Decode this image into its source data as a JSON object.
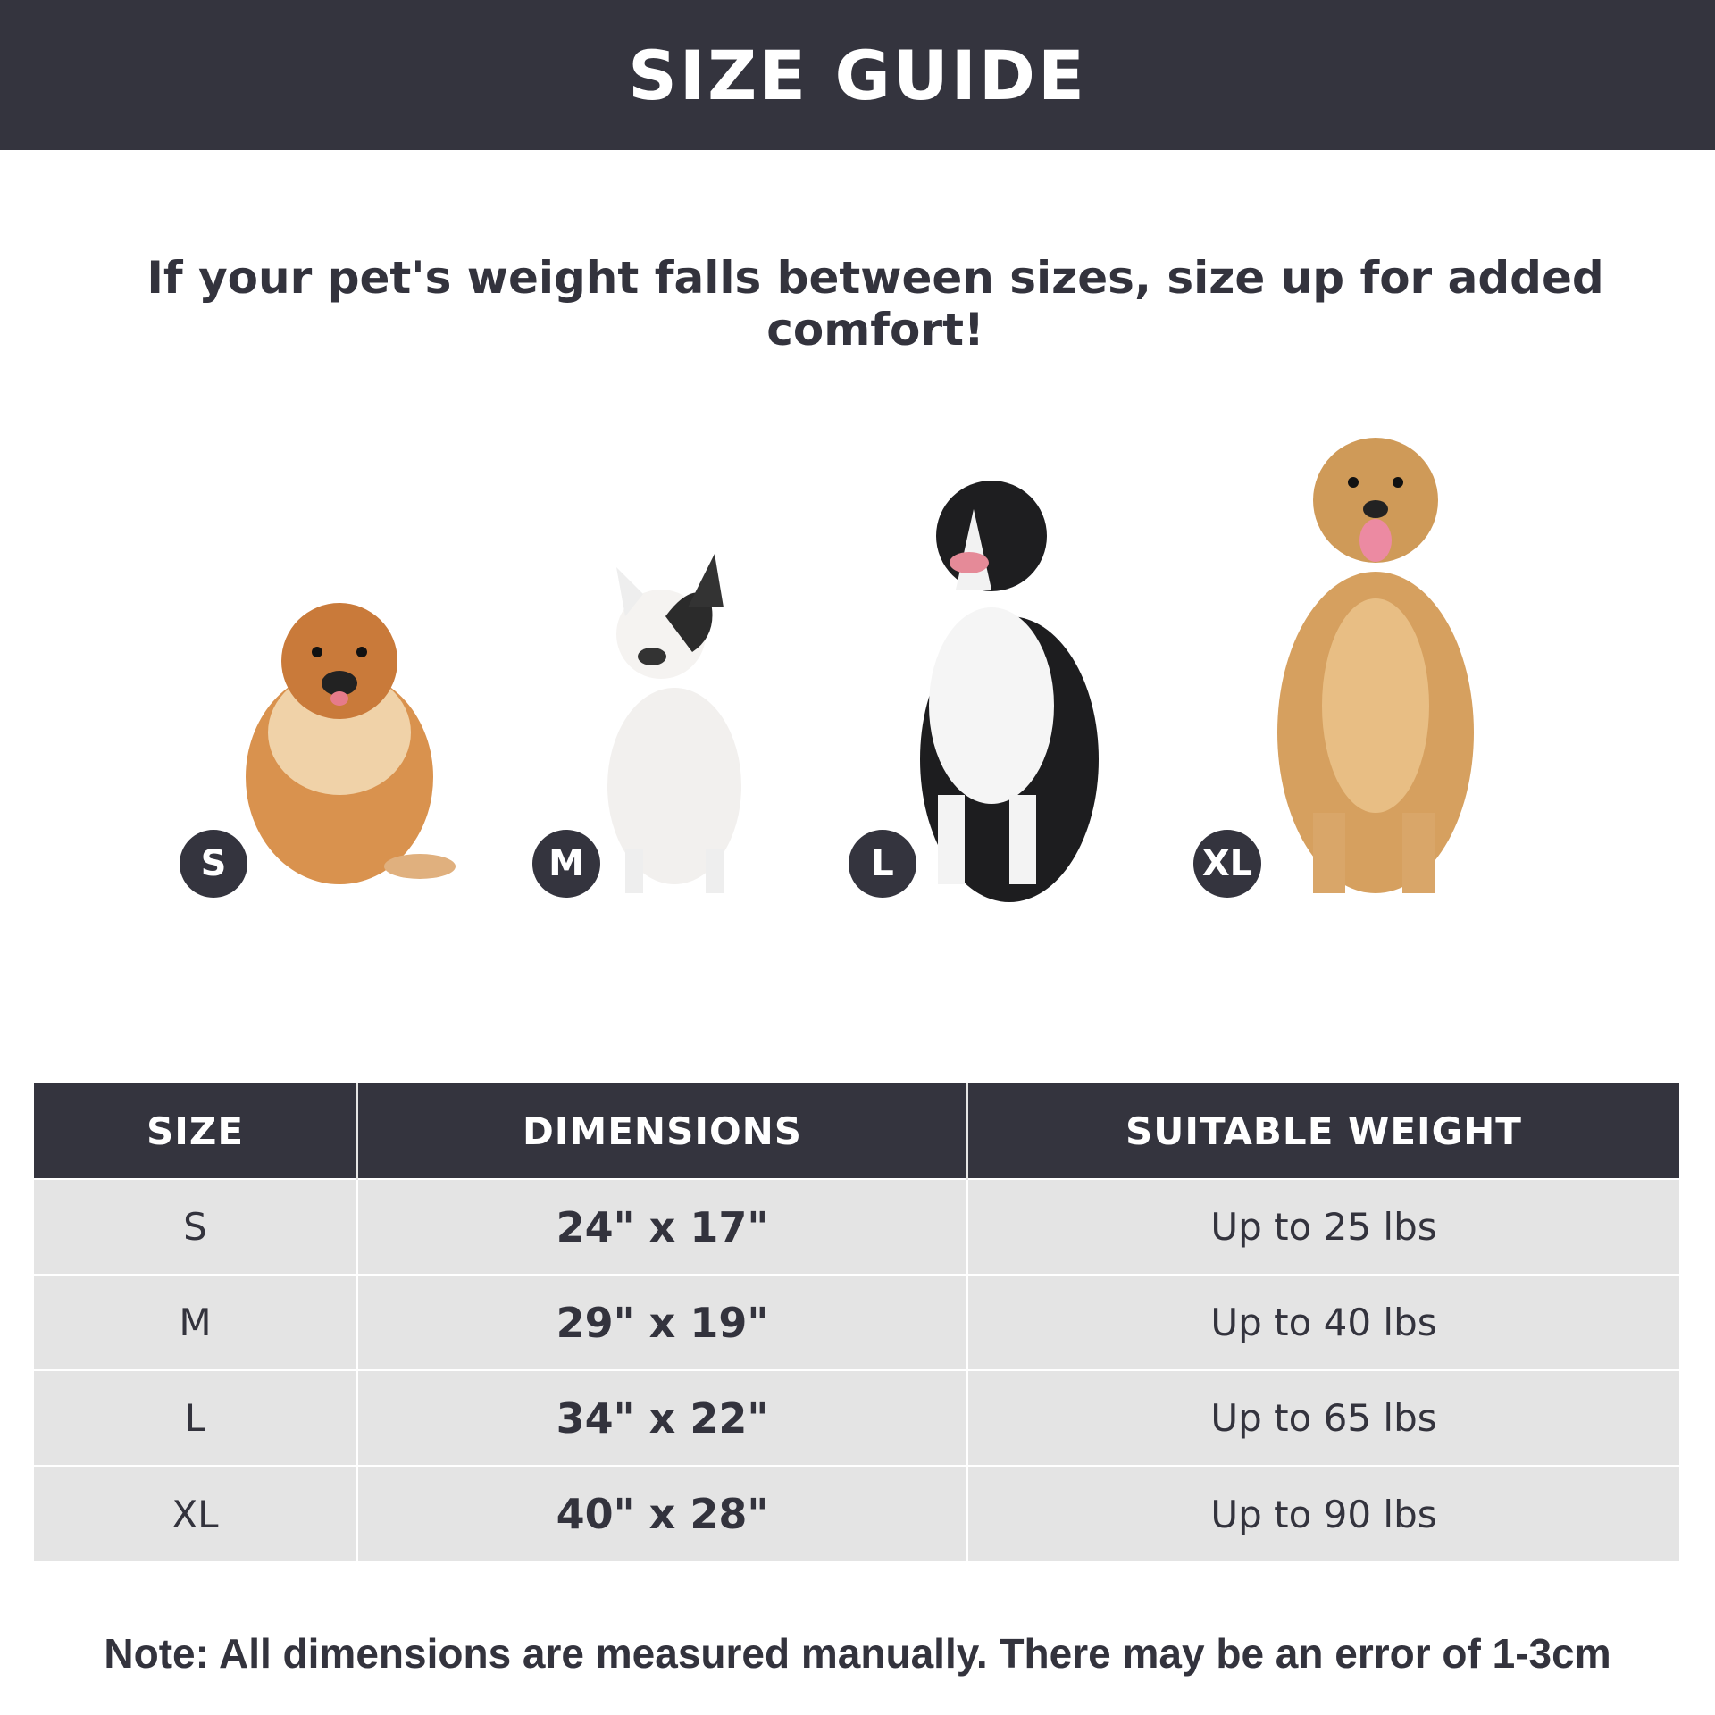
{
  "title": "SIZE GUIDE",
  "subtitle": "If your pet's weight falls between sizes, size up for added comfort!",
  "badges": [
    "S",
    "M",
    "L",
    "XL"
  ],
  "table": {
    "headers": [
      "SIZE",
      "DIMENSIONS",
      "SUITABLE WEIGHT"
    ],
    "rows": [
      [
        "S",
        "24\" x 17\"",
        "Up to 25 lbs"
      ],
      [
        "M",
        "29\" x 19\"",
        "Up to 40 lbs"
      ],
      [
        "L",
        "34\" x 22\"",
        "Up to 65 lbs"
      ],
      [
        "XL",
        "40\" x 28\"",
        "Up to 90 lbs"
      ]
    ]
  },
  "note": "Note: All dimensions are measured manually. There may be an error of 1-3cm",
  "colors": {
    "dark": "#34343e",
    "row_bg": "#e4e4e4"
  }
}
